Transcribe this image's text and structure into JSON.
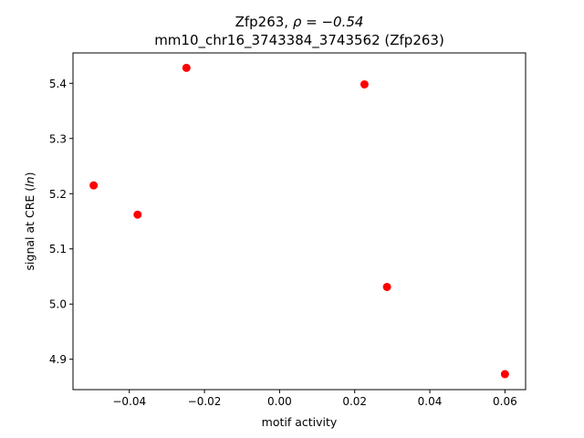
{
  "chart_data": {
    "type": "scatter",
    "title_line1_prefix": "Zfp263, ",
    "title_line1_rho": "ρ = −0.54",
    "title_line2": "mm10_chr16_3743384_3743562 (Zfp263)",
    "xlabel": "motif activity",
    "ylabel_prefix": "signal at CRE (",
    "ylabel_italic": "ln",
    "ylabel_suffix": ")",
    "xlim": [
      -0.055,
      0.0655
    ],
    "ylim": [
      4.845,
      5.455
    ],
    "xticks": [
      -0.04,
      -0.02,
      0.0,
      0.02,
      0.04,
      0.06
    ],
    "xtick_labels": [
      "−0.04",
      "−0.02",
      "0.00",
      "0.02",
      "0.04",
      "0.06"
    ],
    "yticks": [
      4.9,
      5.0,
      5.1,
      5.2,
      5.3,
      5.4
    ],
    "ytick_labels": [
      "4.9",
      "5.0",
      "5.1",
      "5.2",
      "5.3",
      "5.4"
    ],
    "grid": false,
    "marker_color": "#ff0000",
    "points": [
      {
        "x": -0.0495,
        "y": 5.215
      },
      {
        "x": -0.0378,
        "y": 5.162
      },
      {
        "x": -0.0248,
        "y": 5.428
      },
      {
        "x": 0.0226,
        "y": 5.398
      },
      {
        "x": 0.0286,
        "y": 5.031
      },
      {
        "x": 0.06,
        "y": 4.873
      }
    ]
  }
}
